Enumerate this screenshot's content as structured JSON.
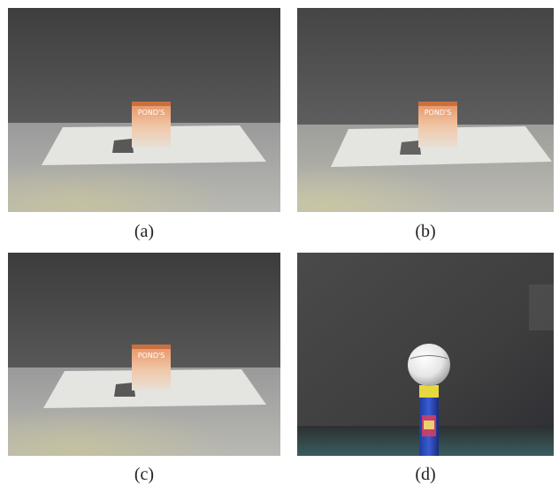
{
  "figure": {
    "panels": [
      {
        "id": "a",
        "caption": "(a)",
        "scene": "box"
      },
      {
        "id": "b",
        "caption": "(b)",
        "scene": "box"
      },
      {
        "id": "c",
        "caption": "(c)",
        "scene": "box"
      },
      {
        "id": "d",
        "caption": "(d)",
        "scene": "ball"
      }
    ]
  }
}
